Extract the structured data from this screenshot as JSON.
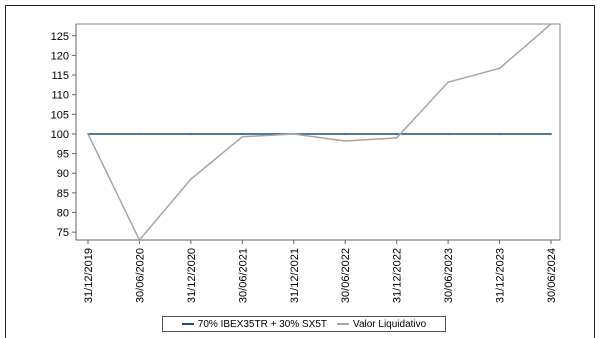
{
  "chart_data": {
    "type": "line",
    "categories": [
      "31/12/2019",
      "30/06/2020",
      "31/12/2020",
      "30/06/2021",
      "31/12/2021",
      "30/06/2022",
      "31/12/2022",
      "30/06/2023",
      "31/12/2023",
      "30/06/2024"
    ],
    "series": [
      {
        "name": "70% IBEX35TR + 30% SX5T",
        "color": "#1f4e79",
        "values": [
          100,
          100,
          100,
          100,
          100,
          100,
          100,
          100,
          100,
          100
        ]
      },
      {
        "name": "Valor Liquidativo",
        "color": "#a6a6a6",
        "values": [
          100,
          73,
          88.5,
          99.3,
          100,
          98.2,
          99,
          113.2,
          116.7,
          128
        ]
      }
    ],
    "y_ticks": [
      75,
      80,
      85,
      90,
      95,
      100,
      105,
      110,
      115,
      120,
      125
    ],
    "ylim": [
      73,
      128
    ],
    "grid": false,
    "legend_position": "bottom"
  }
}
